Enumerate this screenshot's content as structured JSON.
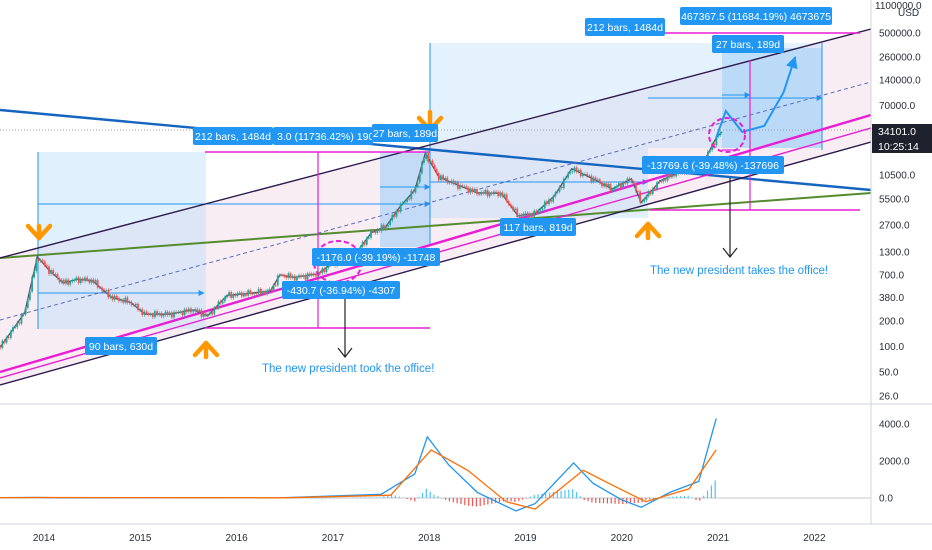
{
  "chart_data": {
    "type": "candlestick",
    "price_scale": "log",
    "currency": "USD",
    "price_ticks": [
      "500000.0",
      "260000.0",
      "140000.0",
      "70000.0",
      "34101.0",
      "10500.0",
      "5500.0",
      "2700.0",
      "1300.0",
      "700.0",
      "380.0",
      "200.0",
      "100.0",
      "50.0",
      "26.0"
    ],
    "top_tick": "1100000.0",
    "current_price": "34101.0",
    "countdown": "10:25:14",
    "x_ticks": [
      "2014",
      "2015",
      "2016",
      "2017",
      "2018",
      "2019",
      "2020",
      "2021",
      "2022"
    ],
    "price_path": [
      {
        "t": 2013.0,
        "p": 80
      },
      {
        "t": 2013.3,
        "p": 120
      },
      {
        "t": 2013.55,
        "p": 100
      },
      {
        "t": 2013.8,
        "p": 250
      },
      {
        "t": 2013.93,
        "p": 1150
      },
      {
        "t": 2014.05,
        "p": 800
      },
      {
        "t": 2014.2,
        "p": 560
      },
      {
        "t": 2014.35,
        "p": 620
      },
      {
        "t": 2014.5,
        "p": 600
      },
      {
        "t": 2014.7,
        "p": 380
      },
      {
        "t": 2014.9,
        "p": 330
      },
      {
        "t": 2015.05,
        "p": 240
      },
      {
        "t": 2015.3,
        "p": 240
      },
      {
        "t": 2015.55,
        "p": 270
      },
      {
        "t": 2015.7,
        "p": 230
      },
      {
        "t": 2015.9,
        "p": 400
      },
      {
        "t": 2016.1,
        "p": 420
      },
      {
        "t": 2016.35,
        "p": 450
      },
      {
        "t": 2016.45,
        "p": 700
      },
      {
        "t": 2016.6,
        "p": 650
      },
      {
        "t": 2016.85,
        "p": 720
      },
      {
        "t": 2017.0,
        "p": 980
      },
      {
        "t": 2017.2,
        "p": 1100
      },
      {
        "t": 2017.4,
        "p": 2200
      },
      {
        "t": 2017.55,
        "p": 2600
      },
      {
        "t": 2017.7,
        "p": 4500
      },
      {
        "t": 2017.85,
        "p": 7000
      },
      {
        "t": 2017.96,
        "p": 19000
      },
      {
        "t": 2018.1,
        "p": 10000
      },
      {
        "t": 2018.3,
        "p": 8000
      },
      {
        "t": 2018.5,
        "p": 6500
      },
      {
        "t": 2018.75,
        "p": 6400
      },
      {
        "t": 2018.92,
        "p": 3500
      },
      {
        "t": 2019.1,
        "p": 3700
      },
      {
        "t": 2019.3,
        "p": 6000
      },
      {
        "t": 2019.48,
        "p": 12500
      },
      {
        "t": 2019.7,
        "p": 9500
      },
      {
        "t": 2019.9,
        "p": 7200
      },
      {
        "t": 2020.1,
        "p": 9500
      },
      {
        "t": 2020.2,
        "p": 5000
      },
      {
        "t": 2020.4,
        "p": 9000
      },
      {
        "t": 2020.6,
        "p": 11500
      },
      {
        "t": 2020.85,
        "p": 15000
      },
      {
        "t": 2020.98,
        "p": 29000
      },
      {
        "t": 2021.04,
        "p": 34101
      }
    ],
    "projection_path": [
      {
        "t": 2020.98,
        "p": 29000
      },
      {
        "t": 2021.08,
        "p": 60000
      },
      {
        "t": 2021.25,
        "p": 34000
      },
      {
        "t": 2021.48,
        "p": 40000
      },
      {
        "t": 2021.68,
        "p": 100000
      },
      {
        "t": 2021.8,
        "p": 260000
      }
    ],
    "indicator": {
      "type": "macd",
      "ticks": [
        "4000.0",
        "2000.0",
        "0.0"
      ],
      "macd": [
        {
          "t": 2013.0,
          "v": 0
        },
        {
          "t": 2013.9,
          "v": 30
        },
        {
          "t": 2014.2,
          "v": 10
        },
        {
          "t": 2016.5,
          "v": 15
        },
        {
          "t": 2017.5,
          "v": 200
        },
        {
          "t": 2017.85,
          "v": 1300
        },
        {
          "t": 2017.98,
          "v": 3300
        },
        {
          "t": 2018.2,
          "v": 1800
        },
        {
          "t": 2018.5,
          "v": 300
        },
        {
          "t": 2018.9,
          "v": -700
        },
        {
          "t": 2019.1,
          "v": -300
        },
        {
          "t": 2019.5,
          "v": 1900
        },
        {
          "t": 2019.7,
          "v": 800
        },
        {
          "t": 2020.0,
          "v": -100
        },
        {
          "t": 2020.2,
          "v": -500
        },
        {
          "t": 2020.5,
          "v": 300
        },
        {
          "t": 2020.8,
          "v": 900
        },
        {
          "t": 2020.98,
          "v": 4300
        }
      ],
      "signal": [
        {
          "t": 2013.0,
          "v": 0
        },
        {
          "t": 2014.0,
          "v": 25
        },
        {
          "t": 2016.5,
          "v": 10
        },
        {
          "t": 2017.6,
          "v": 150
        },
        {
          "t": 2018.02,
          "v": 2600
        },
        {
          "t": 2018.4,
          "v": 1500
        },
        {
          "t": 2018.8,
          "v": -200
        },
        {
          "t": 2019.1,
          "v": -600
        },
        {
          "t": 2019.6,
          "v": 1500
        },
        {
          "t": 2019.9,
          "v": 700
        },
        {
          "t": 2020.25,
          "v": -200
        },
        {
          "t": 2020.7,
          "v": 500
        },
        {
          "t": 2020.98,
          "v": 2600
        }
      ]
    }
  },
  "annotations": {
    "measure_2013": "90 bars, 630d",
    "measure_2017": "212 bars, 1484d",
    "measure_2017_pct": "3.0 (11736.42%) 1901",
    "measure_2018_peak": "27 bars, 189d",
    "measure_2019": "117 bars, 819d",
    "measure_2021": "212 bars, 1484d",
    "measure_2021_pct": "467367.5 (11684.19%) 4673675",
    "measure_2021_peak": "27 bars, 189d",
    "drop_2016_a": "-1176.0 (-39.19%) -11748",
    "drop_2016_b": "-430.7 (-36.94%) -4307",
    "drop_2021": "-13769.6 (-39.48%) -137696",
    "note_2016": "The new president took the office!",
    "note_2021": "The new president takes the office!"
  },
  "colors": {
    "up": "#26a69a",
    "down": "#ef5350",
    "price": "#4a5568",
    "channel": "#2d1b4e",
    "magenta": "#e91ed4",
    "trend_blue": "#1565c0",
    "trend_green": "#558b2f",
    "box_blue": "#90caf9",
    "label_blue": "#2196f3",
    "arrow_orange": "#ff9800",
    "macd": "#2196f3",
    "signal": "#ff6d00"
  }
}
